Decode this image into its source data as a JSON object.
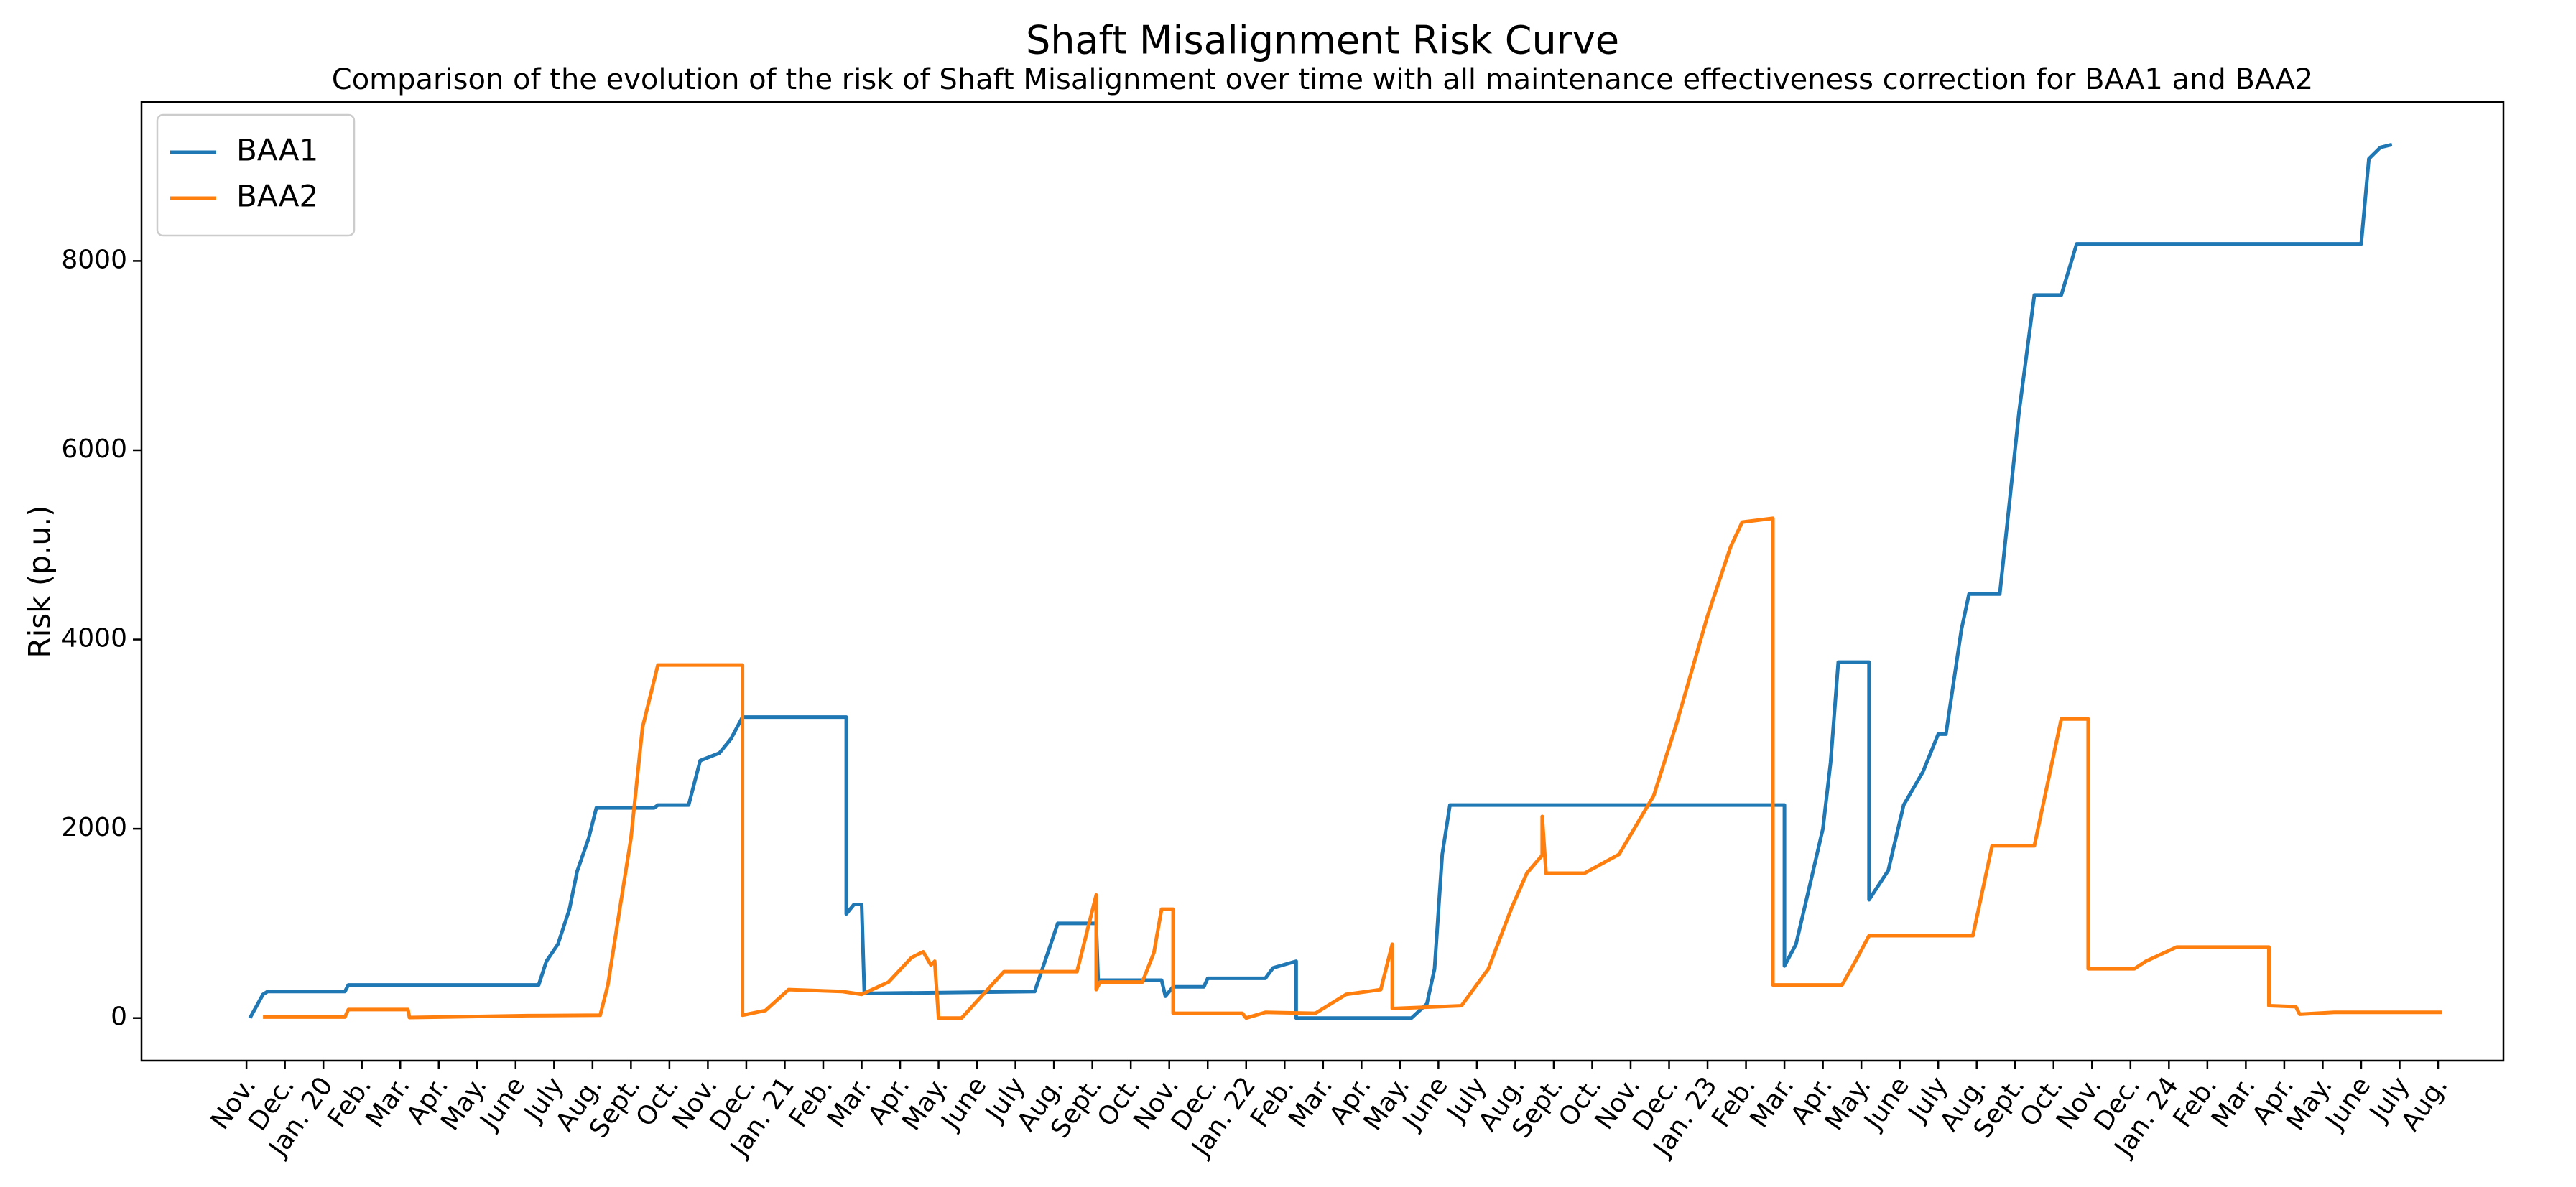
{
  "chart_data": {
    "type": "line",
    "title": "Shaft Misalignment Risk Curve",
    "subtitle": "Comparison of the evolution of the risk of Shaft Misalignment over time with all maintenance effectiveness correction for BAA1 and BAA2",
    "y_label": "Risk (p.u.)",
    "legend": "upper left",
    "grid": false,
    "xlim": [
      -2.73,
      58.7
    ],
    "ylim": [
      -450,
      9680
    ],
    "yticks": [
      0,
      2000,
      4000,
      6000,
      8000
    ],
    "xticks": [
      {
        "value": 0,
        "label": "Nov."
      },
      {
        "value": 1,
        "label": "Dec."
      },
      {
        "value": 2,
        "label": "Jan. 20"
      },
      {
        "value": 3,
        "label": "Feb."
      },
      {
        "value": 4,
        "label": "Mar."
      },
      {
        "value": 5,
        "label": "Apr."
      },
      {
        "value": 6,
        "label": "May."
      },
      {
        "value": 7,
        "label": "June"
      },
      {
        "value": 8,
        "label": "July"
      },
      {
        "value": 9,
        "label": "Aug."
      },
      {
        "value": 10,
        "label": "Sept."
      },
      {
        "value": 11,
        "label": "Oct."
      },
      {
        "value": 12,
        "label": "Nov."
      },
      {
        "value": 13,
        "label": "Dec."
      },
      {
        "value": 14,
        "label": "Jan. 21"
      },
      {
        "value": 15,
        "label": "Feb."
      },
      {
        "value": 16,
        "label": "Mar."
      },
      {
        "value": 17,
        "label": "Apr."
      },
      {
        "value": 18,
        "label": "May."
      },
      {
        "value": 19,
        "label": "June"
      },
      {
        "value": 20,
        "label": "July"
      },
      {
        "value": 21,
        "label": "Aug."
      },
      {
        "value": 22,
        "label": "Sept."
      },
      {
        "value": 23,
        "label": "Oct."
      },
      {
        "value": 24,
        "label": "Nov."
      },
      {
        "value": 25,
        "label": "Dec."
      },
      {
        "value": 26,
        "label": "Jan. 22"
      },
      {
        "value": 27,
        "label": "Feb."
      },
      {
        "value": 28,
        "label": "Mar."
      },
      {
        "value": 29,
        "label": "Apr."
      },
      {
        "value": 30,
        "label": "May."
      },
      {
        "value": 31,
        "label": "June"
      },
      {
        "value": 32,
        "label": "July"
      },
      {
        "value": 33,
        "label": "Aug."
      },
      {
        "value": 34,
        "label": "Sept."
      },
      {
        "value": 35,
        "label": "Oct."
      },
      {
        "value": 36,
        "label": "Nov."
      },
      {
        "value": 37,
        "label": "Dec."
      },
      {
        "value": 38,
        "label": "Jan. 23"
      },
      {
        "value": 39,
        "label": "Feb."
      },
      {
        "value": 40,
        "label": "Mar."
      },
      {
        "value": 41,
        "label": "Apr."
      },
      {
        "value": 42,
        "label": "May."
      },
      {
        "value": 43,
        "label": "June"
      },
      {
        "value": 44,
        "label": "July"
      },
      {
        "value": 45,
        "label": "Aug."
      },
      {
        "value": 46,
        "label": "Sept."
      },
      {
        "value": 47,
        "label": "Oct."
      },
      {
        "value": 48,
        "label": "Nov."
      },
      {
        "value": 49,
        "label": "Dec."
      },
      {
        "value": 50,
        "label": "Jan. 24"
      },
      {
        "value": 51,
        "label": "Feb."
      },
      {
        "value": 52,
        "label": "Mar."
      },
      {
        "value": 53,
        "label": "Apr."
      },
      {
        "value": 54,
        "label": "May."
      },
      {
        "value": 55,
        "label": "June"
      },
      {
        "value": 56,
        "label": "July"
      },
      {
        "value": 57,
        "label": "Aug."
      }
    ],
    "series": [
      {
        "name": "BAA1",
        "color": "#1f77b4",
        "x": [
          0.09,
          0.43,
          0.55,
          2.56,
          2.65,
          7.6,
          7.8,
          8.1,
          8.4,
          8.6,
          8.9,
          9.1,
          10.6,
          10.7,
          11.5,
          11.8,
          12.3,
          12.6,
          12.9,
          15.6,
          15.6,
          15.8,
          16.0,
          16.07,
          20.5,
          21.1,
          22.1,
          22.15,
          23.8,
          23.9,
          24.1,
          24.9,
          25.0,
          26.5,
          26.7,
          27.3,
          27.3,
          30.3,
          30.7,
          30.9,
          31.1,
          31.3,
          40.0,
          40.0,
          40.3,
          40.6,
          41.0,
          41.2,
          41.4,
          42.2,
          42.2,
          42.7,
          43.1,
          43.6,
          44.0,
          44.2,
          44.6,
          44.8,
          45.6,
          46.1,
          46.5,
          47.2,
          47.6,
          55.0,
          55.2,
          55.5,
          55.8
        ],
        "values": [
          0,
          250,
          280,
          280,
          350,
          350,
          600,
          780,
          1150,
          1550,
          1900,
          2220,
          2220,
          2250,
          2250,
          2720,
          2800,
          2950,
          3180,
          3180,
          1100,
          1200,
          1200,
          260,
          280,
          1000,
          1000,
          400,
          400,
          230,
          330,
          330,
          420,
          420,
          530,
          600,
          0,
          0,
          150,
          520,
          1730,
          2250,
          2250,
          550,
          780,
          1300,
          2000,
          2700,
          3760,
          3760,
          1250,
          1560,
          2250,
          2600,
          3000,
          3000,
          4100,
          4480,
          4480,
          6400,
          7640,
          7640,
          8180,
          8180,
          9080,
          9200,
          9230
        ]
      },
      {
        "name": "BAA2",
        "color": "#ff7f0e",
        "x": [
          0.43,
          2.56,
          2.65,
          4.2,
          4.24,
          7.3,
          9.2,
          9.4,
          9.7,
          10.0,
          10.3,
          10.7,
          12.9,
          12.9,
          13.5,
          14.1,
          15.5,
          16.0,
          16.7,
          17.3,
          17.6,
          17.8,
          17.9,
          18.0,
          18.6,
          19.7,
          21.6,
          22.1,
          22.1,
          22.2,
          23.3,
          23.6,
          23.8,
          24.1,
          24.1,
          25.9,
          26.0,
          26.5,
          27.8,
          28.6,
          29.5,
          29.8,
          29.8,
          31.6,
          32.3,
          32.9,
          33.3,
          33.7,
          33.7,
          33.8,
          34.8,
          35.7,
          36.6,
          37.2,
          38.0,
          38.6,
          38.9,
          39.7,
          39.7,
          41.5,
          41.9,
          42.2,
          44.9,
          45.4,
          46.5,
          47.2,
          47.9,
          47.9,
          49.1,
          49.4,
          50.2,
          52.6,
          52.6,
          53.3,
          53.4,
          54.3,
          57.1
        ],
        "values": [
          10,
          10,
          90,
          90,
          5,
          25,
          30,
          350,
          1130,
          1900,
          3070,
          3730,
          3730,
          30,
          80,
          300,
          280,
          250,
          380,
          640,
          700,
          560,
          600,
          0,
          0,
          490,
          490,
          1300,
          300,
          380,
          380,
          690,
          1150,
          1150,
          50,
          50,
          0,
          60,
          50,
          250,
          300,
          780,
          100,
          130,
          520,
          1160,
          1530,
          1720,
          2130,
          1530,
          1530,
          1730,
          2350,
          3120,
          4250,
          4980,
          5240,
          5280,
          350,
          350,
          640,
          870,
          870,
          1820,
          1820,
          3160,
          3160,
          520,
          520,
          600,
          750,
          750,
          130,
          120,
          40,
          60,
          60
        ]
      }
    ]
  }
}
